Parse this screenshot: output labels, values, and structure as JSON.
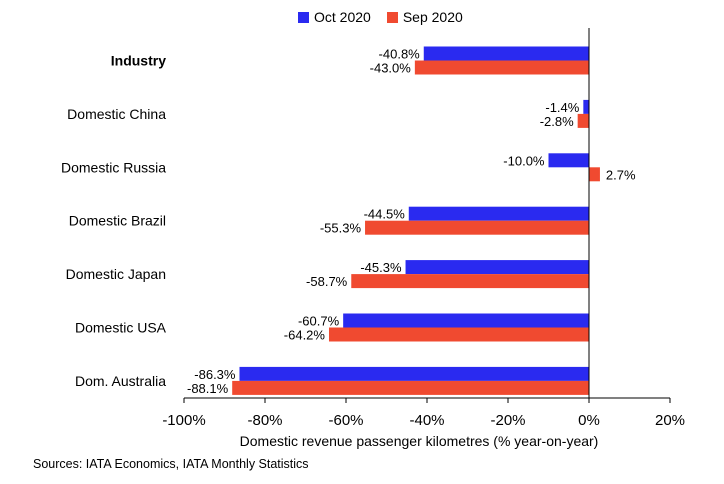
{
  "chart_data": {
    "type": "bar",
    "orientation": "horizontal",
    "categories": [
      "Industry",
      "Domestic China",
      "Domestic Russia",
      "Domestic Brazil",
      "Domestic Japan",
      "Domestic USA",
      "Dom. Australia"
    ],
    "series": [
      {
        "name": "Oct 2020",
        "color": "#2a2af0",
        "values": [
          -40.8,
          -1.4,
          -10.0,
          -44.5,
          -45.3,
          -60.7,
          -86.3
        ]
      },
      {
        "name": "Sep 2020",
        "color": "#f04a30",
        "values": [
          -43.0,
          -2.8,
          2.7,
          -55.3,
          -58.7,
          -64.2,
          -88.1
        ]
      }
    ],
    "value_labels": [
      [
        "-40.8%",
        "-1.4%",
        "-10.0%",
        "-44.5%",
        "-45.3%",
        "-60.7%",
        "-86.3%"
      ],
      [
        "-43.0%",
        "-2.8%",
        "2.7%",
        "-55.3%",
        "-58.7%",
        "-64.2%",
        "-88.1%"
      ]
    ],
    "xlim": [
      -100,
      20
    ],
    "xticks": [
      -100,
      -80,
      -60,
      -40,
      -20,
      0,
      20
    ],
    "xtick_labels": [
      "-100%",
      "-80%",
      "-60%",
      "-40%",
      "-20%",
      "0%",
      "20%"
    ],
    "xlabel": "Domestic revenue passenger kilometres (% year-on-year)",
    "legend_position": "top",
    "grid": false,
    "bold_category": "Industry"
  },
  "source": "Sources: IATA Economics, IATA Monthly Statistics"
}
